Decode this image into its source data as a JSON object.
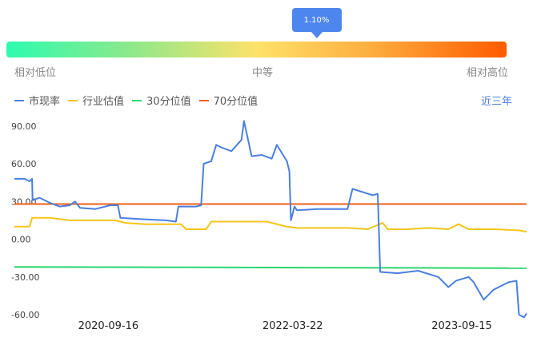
{
  "gauge": {
    "current_label": "1.10%",
    "position_fraction": 0.62,
    "left_label": "相对低位",
    "mid_label": "中等",
    "right_label": "相对高位"
  },
  "range_link": "近三年",
  "chart_data": {
    "type": "line",
    "x": [
      "2020-09-16",
      "2022-03-22",
      "2023-09-15"
    ],
    "ylim": [
      -65,
      100
    ],
    "yticks": [
      "90.00",
      "60.00",
      "30.00",
      "0.00",
      "-30.00",
      "-60.00"
    ],
    "ytick_values": [
      90,
      60,
      30,
      0,
      -30,
      -60
    ],
    "xticks": [
      "2020-09-16",
      "2022-03-22",
      "2023-09-15"
    ],
    "xtick_positions": [
      0.19,
      0.55,
      0.88
    ],
    "legend": [
      "市现率",
      "行业估值",
      "30分位值",
      "70分位值"
    ],
    "series": [
      {
        "name": "市现率",
        "color": "#4a7fe0",
        "points": [
          [
            0.0,
            48
          ],
          [
            0.02,
            48
          ],
          [
            0.03,
            46
          ],
          [
            0.035,
            48
          ],
          [
            0.036,
            31
          ],
          [
            0.05,
            33
          ],
          [
            0.07,
            29
          ],
          [
            0.09,
            26
          ],
          [
            0.11,
            27
          ],
          [
            0.12,
            30
          ],
          [
            0.13,
            25
          ],
          [
            0.16,
            24
          ],
          [
            0.19,
            27
          ],
          [
            0.205,
            27
          ],
          [
            0.21,
            17
          ],
          [
            0.25,
            16
          ],
          [
            0.3,
            15
          ],
          [
            0.32,
            14
          ],
          [
            0.325,
            26
          ],
          [
            0.36,
            26
          ],
          [
            0.37,
            27
          ],
          [
            0.375,
            60
          ],
          [
            0.39,
            62
          ],
          [
            0.4,
            75
          ],
          [
            0.41,
            73
          ],
          [
            0.43,
            70
          ],
          [
            0.45,
            79
          ],
          [
            0.455,
            94
          ],
          [
            0.47,
            66
          ],
          [
            0.49,
            67
          ],
          [
            0.51,
            64
          ],
          [
            0.52,
            75
          ],
          [
            0.54,
            62
          ],
          [
            0.545,
            54
          ],
          [
            0.548,
            15
          ],
          [
            0.555,
            26
          ],
          [
            0.56,
            23
          ],
          [
            0.6,
            24
          ],
          [
            0.66,
            24
          ],
          [
            0.67,
            40
          ],
          [
            0.71,
            35
          ],
          [
            0.72,
            36
          ],
          [
            0.725,
            -26
          ],
          [
            0.76,
            -27
          ],
          [
            0.8,
            -25
          ],
          [
            0.84,
            -30
          ],
          [
            0.86,
            -38
          ],
          [
            0.875,
            -33
          ],
          [
            0.9,
            -30
          ],
          [
            0.91,
            -34
          ],
          [
            0.93,
            -48
          ],
          [
            0.95,
            -40
          ],
          [
            0.98,
            -34
          ],
          [
            0.995,
            -33
          ],
          [
            1.0,
            -60
          ],
          [
            1.01,
            -62
          ],
          [
            1.015,
            -59
          ]
        ]
      },
      {
        "name": "行业估值",
        "color": "#f5c518",
        "points": [
          [
            0.0,
            10
          ],
          [
            0.03,
            10
          ],
          [
            0.035,
            17
          ],
          [
            0.07,
            17
          ],
          [
            0.11,
            15
          ],
          [
            0.15,
            15
          ],
          [
            0.2,
            15
          ],
          [
            0.22,
            13
          ],
          [
            0.26,
            12
          ],
          [
            0.33,
            12
          ],
          [
            0.34,
            8
          ],
          [
            0.38,
            8
          ],
          [
            0.39,
            14
          ],
          [
            0.45,
            14
          ],
          [
            0.5,
            14
          ],
          [
            0.54,
            10
          ],
          [
            0.56,
            9
          ],
          [
            0.6,
            9
          ],
          [
            0.66,
            9
          ],
          [
            0.7,
            8
          ],
          [
            0.73,
            13
          ],
          [
            0.74,
            8
          ],
          [
            0.78,
            8
          ],
          [
            0.82,
            9
          ],
          [
            0.86,
            8
          ],
          [
            0.88,
            12
          ],
          [
            0.9,
            8
          ],
          [
            0.95,
            8
          ],
          [
            1.0,
            7
          ],
          [
            1.015,
            6
          ]
        ]
      },
      {
        "name": "30分位值",
        "color": "#2bd670",
        "points": [
          [
            0.0,
            -22
          ],
          [
            1.015,
            -23
          ]
        ]
      },
      {
        "name": "70分位值",
        "color": "#f0601a",
        "points": [
          [
            0.0,
            28
          ],
          [
            1.015,
            28
          ]
        ]
      }
    ]
  }
}
